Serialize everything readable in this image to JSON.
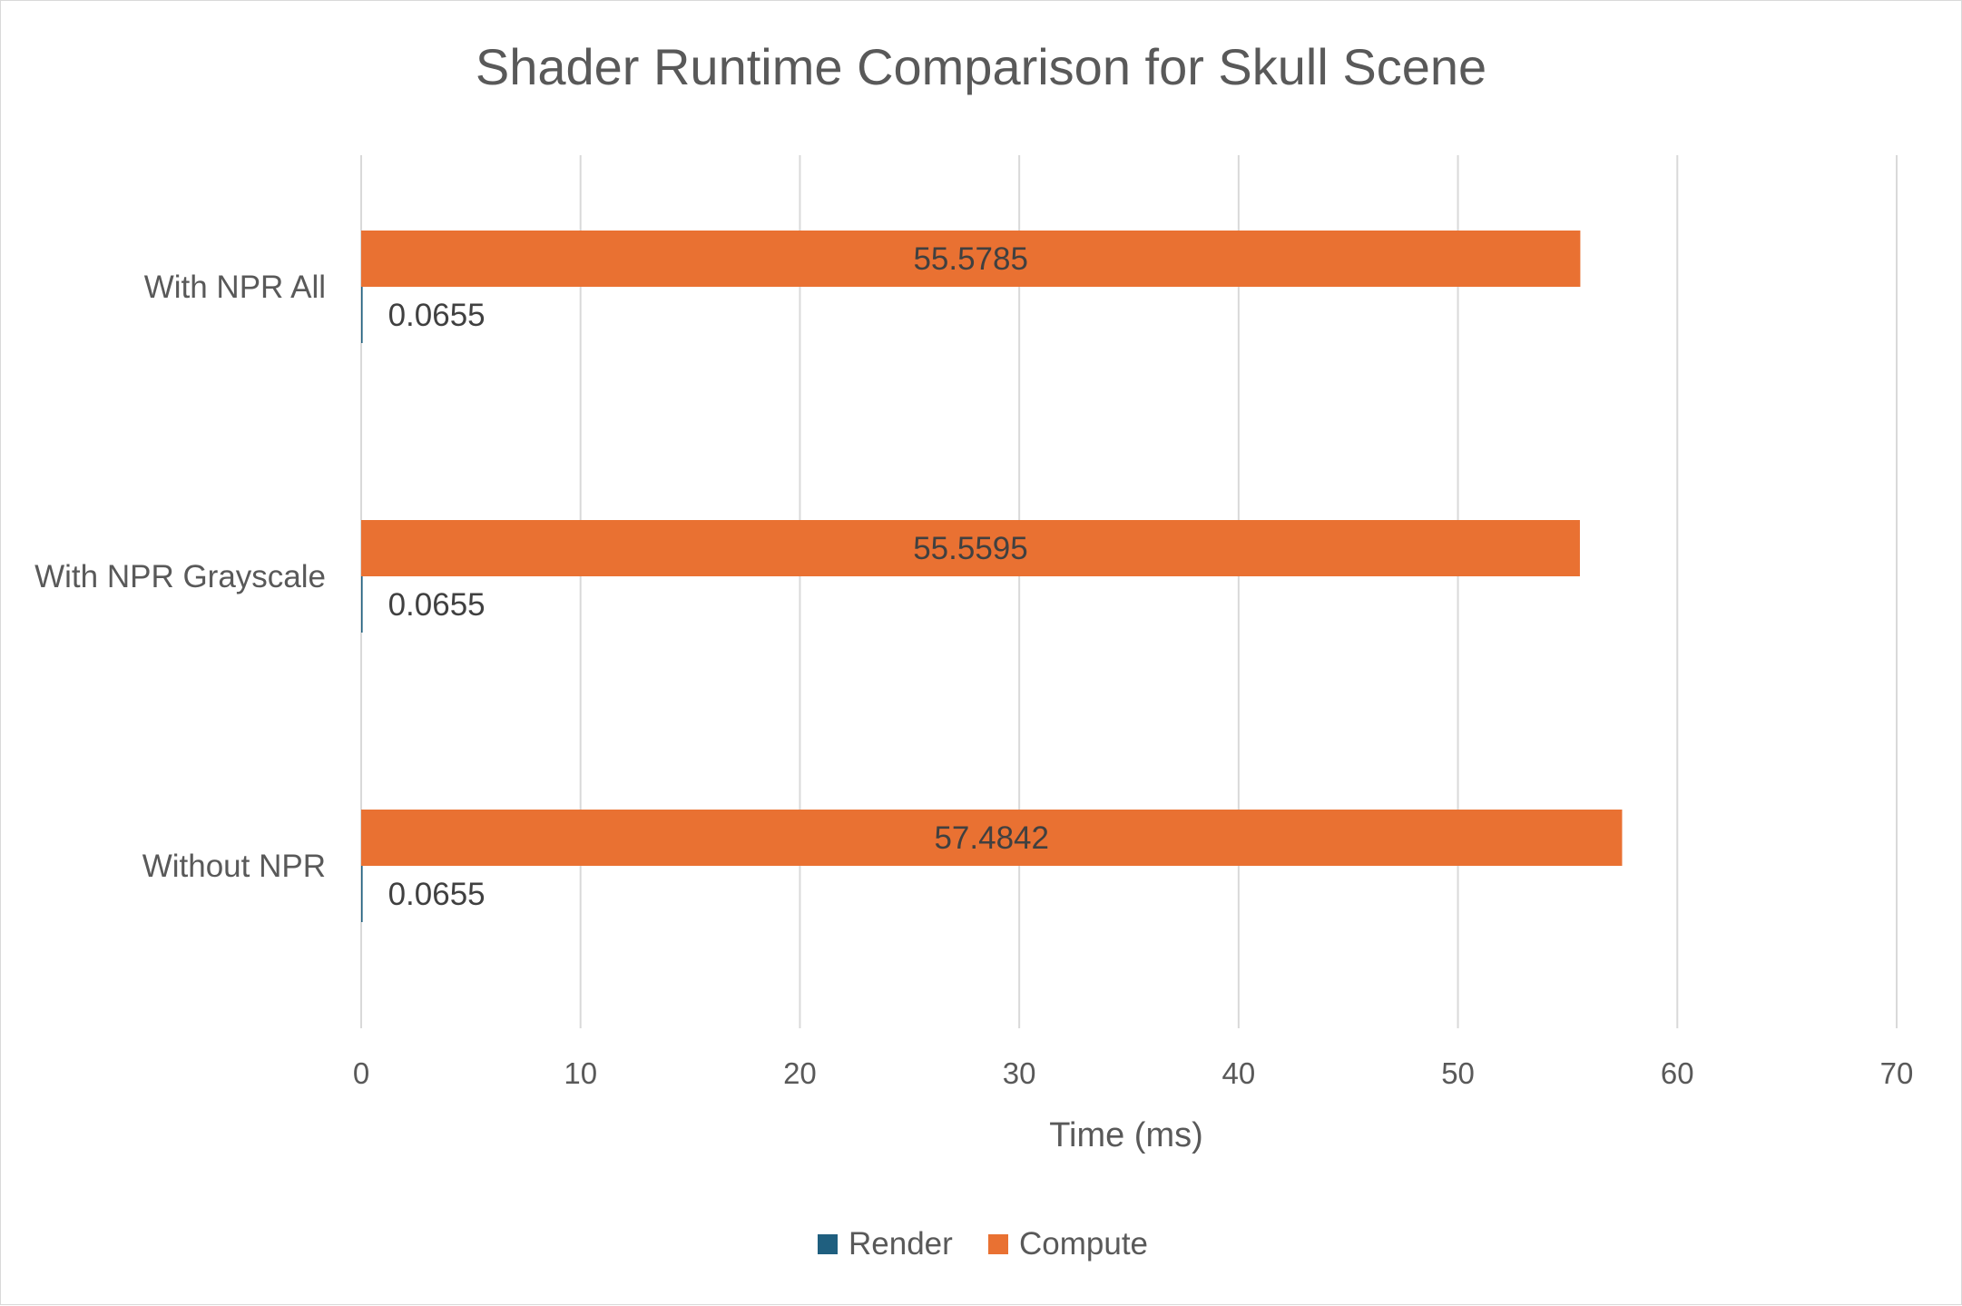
{
  "chart_data": {
    "type": "bar",
    "orientation": "horizontal",
    "title": "Shader Runtime Comparison for Skull Scene",
    "xlabel": "Time (ms)",
    "ylabel": "",
    "xlim": [
      0,
      70
    ],
    "x_ticks": [
      0,
      10,
      20,
      30,
      40,
      50,
      60,
      70
    ],
    "grid": true,
    "legend_position": "bottom",
    "categories": [
      "With NPR All",
      "With NPR Grayscale",
      "Without NPR"
    ],
    "series": [
      {
        "name": "Render",
        "color": "#1f5f7f",
        "values": [
          0.0655,
          0.0655,
          0.0655
        ],
        "labels": [
          "0.0655",
          "0.0655",
          "0.0655"
        ]
      },
      {
        "name": "Compute",
        "color": "#e97132",
        "values": [
          55.5785,
          55.5595,
          57.4842
        ],
        "labels": [
          "55.5785",
          "55.5595",
          "57.4842"
        ]
      }
    ]
  }
}
